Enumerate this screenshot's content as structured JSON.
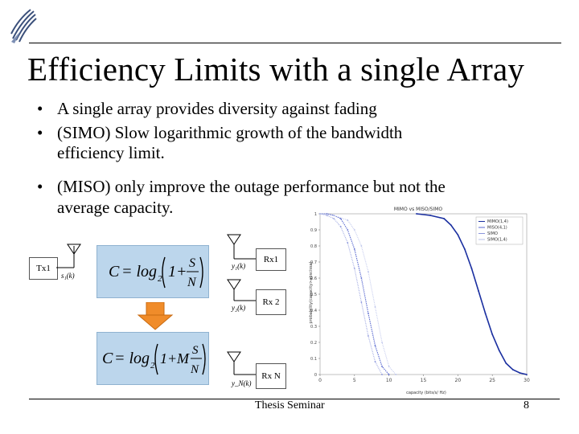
{
  "slide": {
    "title": "Efficiency Limits with a single Array",
    "bullets": [
      {
        "marker": "•",
        "lines": [
          "A single array provides diversity against fading"
        ]
      },
      {
        "marker": "•",
        "lines": [
          "(SIMO) Slow logarithmic growth of the bandwidth",
          "efficiency limit."
        ]
      },
      {
        "marker": "•",
        "lines": [
          "(MISO) only improve the outage performance but not the",
          "average capacity."
        ]
      }
    ],
    "footer": "Thesis Seminar",
    "page_number": "8"
  },
  "diagram": {
    "tx_label": "Tx1",
    "tx_signal": "s₁(k)",
    "rx_labels": [
      "Rx1",
      "Rx 2",
      "Rx N"
    ],
    "rx_signals": [
      "y₁(k)",
      "y₂(k)",
      "y_N(k)"
    ],
    "formula_top": "C = log₂(1 + S/N)",
    "formula_bottom": "C = log₂(1 + M·S/N)"
  },
  "chart_data": {
    "type": "line",
    "title": "MIMO vs MISO/SIMO",
    "xlabel": "capacity (bits/s/ Hz)",
    "ylabel": "probability(capacity>abscissa)",
    "xlim": [
      0,
      30
    ],
    "ylim": [
      0,
      1
    ],
    "xticks": [
      "0",
      "5",
      "10",
      "15",
      "20",
      "25",
      "30"
    ],
    "yticks": [
      "0",
      "0.1",
      "0.2",
      "0.3",
      "0.4",
      "0.5",
      "0.6",
      "0.7",
      "0.8",
      "0.9",
      "1"
    ],
    "legend": [
      "MIMO(1,4)",
      "MISO(4,1)",
      "SIMO",
      "SIMO(1,4)"
    ],
    "legend_position": "top-right",
    "series": [
      {
        "name": "MIMO(1,4)",
        "color": "#1a2fa0",
        "x": [
          14,
          16,
          18,
          19,
          20,
          21,
          22,
          23,
          24,
          25,
          26,
          27,
          28,
          29,
          30
        ],
        "y": [
          1.0,
          0.99,
          0.97,
          0.93,
          0.87,
          0.78,
          0.66,
          0.52,
          0.38,
          0.25,
          0.15,
          0.07,
          0.03,
          0.01,
          0.0
        ]
      },
      {
        "name": "MISO(4,1)",
        "color": "#5a6ad0",
        "x": [
          0,
          1,
          2,
          3,
          4,
          5,
          6,
          7,
          8,
          9,
          10
        ],
        "y": [
          1.0,
          1.0,
          0.99,
          0.97,
          0.9,
          0.78,
          0.6,
          0.38,
          0.18,
          0.05,
          0.0
        ]
      },
      {
        "name": "SIMO",
        "color": "#8b96dc",
        "x": [
          0,
          1,
          2,
          3,
          4,
          5,
          6,
          7,
          8,
          9
        ],
        "y": [
          1.0,
          0.99,
          0.97,
          0.92,
          0.82,
          0.66,
          0.45,
          0.24,
          0.08,
          0.0
        ]
      },
      {
        "name": "SIMO(1,4)",
        "color": "#b8c0ea",
        "x": [
          0,
          2,
          4,
          5,
          6,
          7,
          8,
          9,
          10,
          11
        ],
        "y": [
          1.0,
          0.99,
          0.96,
          0.9,
          0.8,
          0.64,
          0.42,
          0.2,
          0.05,
          0.0
        ]
      }
    ]
  }
}
